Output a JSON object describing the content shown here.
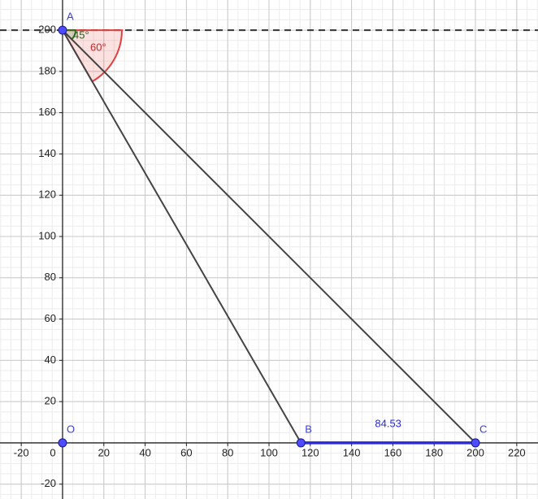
{
  "axes": {
    "xlim": [
      -30.3,
      230.3
    ],
    "ylim": [
      -27.2,
      214.6
    ],
    "xticks": [
      -20,
      0,
      20,
      40,
      60,
      80,
      100,
      120,
      140,
      160,
      180,
      200,
      220
    ],
    "yticks": [
      -20,
      20,
      40,
      60,
      80,
      100,
      120,
      140,
      160,
      180,
      200
    ]
  },
  "points": [
    {
      "label": "A",
      "x": 0,
      "y": 200
    },
    {
      "label": "O",
      "x": 0,
      "y": 0
    },
    {
      "label": "B",
      "x": 115.47,
      "y": 0
    },
    {
      "label": "C",
      "x": 200,
      "y": 0
    }
  ],
  "angles": [
    {
      "value": 60,
      "label": "60°"
    },
    {
      "value": 45,
      "label": "45°"
    }
  ],
  "bc_length": 84.53
}
